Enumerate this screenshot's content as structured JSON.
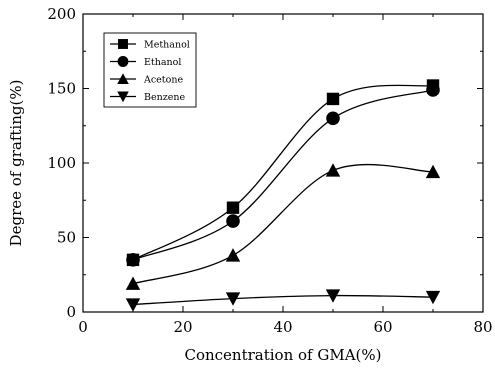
{
  "chart_data": {
    "type": "line",
    "title": "",
    "xlabel": "Concentration of GMA(%)",
    "ylabel": "Degree of grafting(%)",
    "xlim": [
      0,
      80
    ],
    "ylim": [
      0,
      200
    ],
    "xticks": [
      0,
      20,
      40,
      60,
      80
    ],
    "yticks": [
      0,
      50,
      100,
      150,
      200
    ],
    "grid": false,
    "legend": "top-left",
    "x": [
      10,
      30,
      50,
      70
    ],
    "series": [
      {
        "name": "Methanol",
        "marker": "square",
        "values": [
          35,
          70,
          143,
          152
        ]
      },
      {
        "name": "Ethanol",
        "marker": "circle",
        "values": [
          35,
          61,
          130,
          149
        ]
      },
      {
        "name": "Acetone",
        "marker": "triangle-up",
        "values": [
          19,
          38,
          95,
          94
        ]
      },
      {
        "name": "Benzene",
        "marker": "triangle-down",
        "values": [
          5,
          9,
          11,
          10
        ]
      }
    ]
  }
}
